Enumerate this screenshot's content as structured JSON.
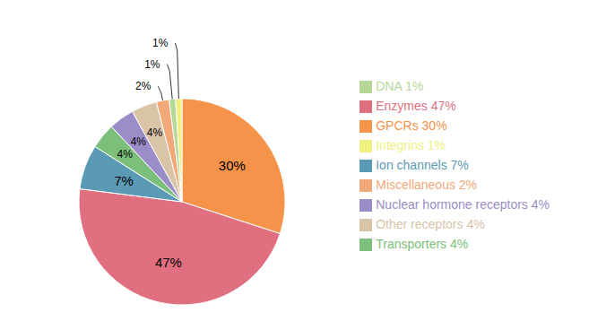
{
  "chart_data": {
    "type": "pie",
    "categories": [
      "GPCRs 30%",
      "Enzymes 47%",
      "Ion channels 7%",
      "Transporters 4%",
      "Nuclear hormone receptors 4%",
      "Other receptors 4%",
      "Miscellaneous 2%",
      "DNA 1%",
      "Integrins 1%"
    ],
    "values": [
      30,
      47,
      7,
      4,
      4,
      4,
      2,
      1,
      1
    ],
    "value_labels": [
      "30%",
      "47%",
      "7%",
      "4%",
      "4%",
      "4%",
      "2%",
      "1%",
      "1%"
    ],
    "colors": [
      "#F5934A",
      "#E07080",
      "#5B9AB5",
      "#7BBF7A",
      "#9B8DC8",
      "#D9C4A8",
      "#F2A878",
      "#B5D898",
      "#F0F080"
    ],
    "data_labels": true,
    "legend": "right"
  }
}
